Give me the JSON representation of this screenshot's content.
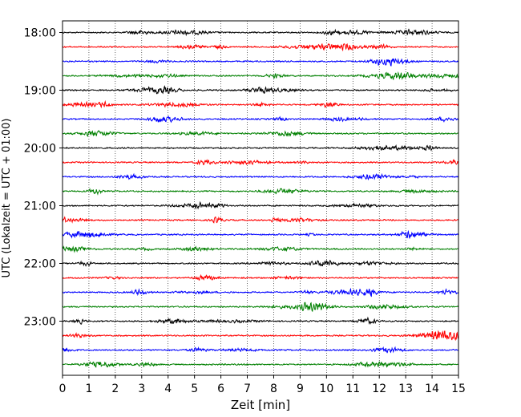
{
  "chart_data": {
    "type": "line",
    "title": "",
    "xlabel": "Zeit  [min]",
    "ylabel": "UTC (Lokalzeit = UTC + 01:00)",
    "xlim": [
      0,
      15
    ],
    "x_ticks": [
      "0",
      "1",
      "2",
      "3",
      "4",
      "5",
      "6",
      "7",
      "8",
      "9",
      "10",
      "11",
      "12",
      "13",
      "14",
      "15"
    ],
    "y_tick_labels": [
      "18:00",
      "19:00",
      "20:00",
      "21:00",
      "22:00",
      "23:00"
    ],
    "start_time": "18:00",
    "trace_interval_min": 15,
    "trace_count": 24,
    "trace_colors": [
      "#000000",
      "#ff0000",
      "#0000ff",
      "#008000"
    ],
    "grid": {
      "x": true,
      "y": false,
      "style": "dotted"
    },
    "legend": "none",
    "note": "Helicorder-style seismogram: each horizontal trace spans 15 minutes of waveform data; traces cycle black, red, blue, green."
  }
}
